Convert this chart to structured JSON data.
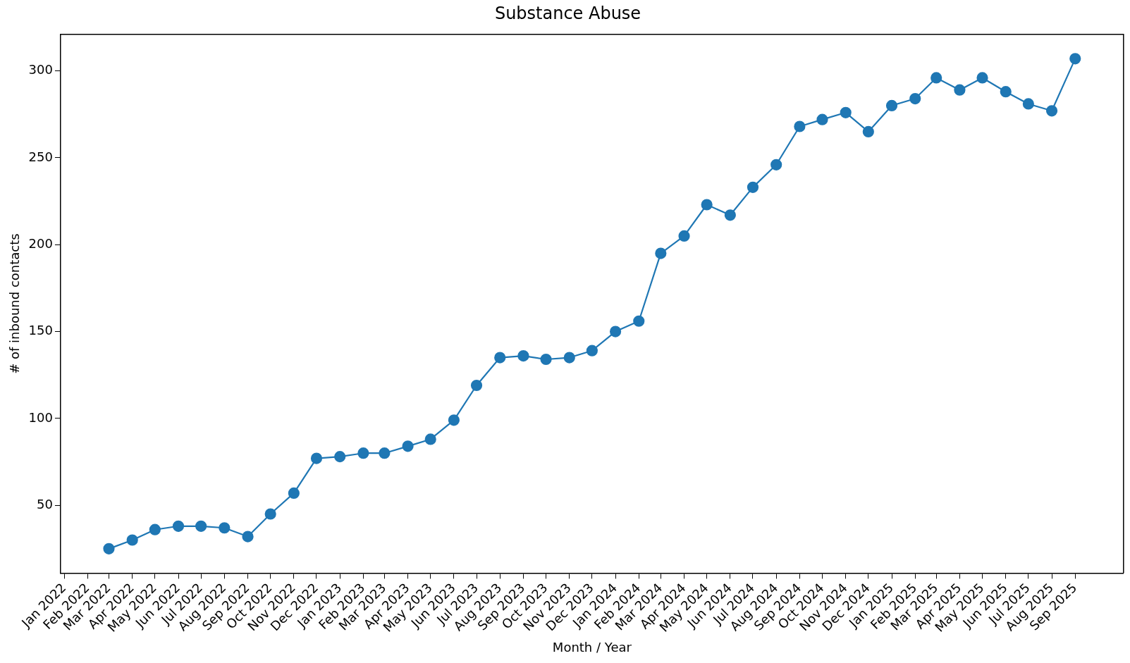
{
  "chart_data": {
    "type": "line",
    "title": "Substance Abuse",
    "xlabel": "Month / Year",
    "ylabel": "# of inbound contacts",
    "x": [
      "2022-03",
      "2022-04",
      "2022-05",
      "2022-06",
      "2022-07",
      "2022-08",
      "2022-09",
      "2022-10",
      "2022-11",
      "2022-12",
      "2023-01",
      "2023-02",
      "2023-03",
      "2023-04",
      "2023-05",
      "2023-06",
      "2023-07",
      "2023-08",
      "2023-09",
      "2023-10",
      "2023-11",
      "2023-12",
      "2024-01",
      "2024-02",
      "2024-03",
      "2024-04",
      "2024-05",
      "2024-06",
      "2024-07",
      "2024-08",
      "2024-09",
      "2024-10",
      "2024-11",
      "2024-12",
      "2025-01",
      "2025-02",
      "2025-03",
      "2025-04",
      "2025-05",
      "2025-06",
      "2025-07",
      "2025-08",
      "2025-09"
    ],
    "series": [
      {
        "color": "#1f77b4",
        "values": [
          25,
          30,
          36,
          38,
          38,
          37,
          32,
          45,
          57,
          77,
          78,
          80,
          80,
          84,
          88,
          99,
          119,
          135,
          136,
          134,
          135,
          139,
          150,
          156,
          195,
          205,
          223,
          217,
          233,
          246,
          268,
          272,
          276,
          265,
          280,
          284,
          296,
          289,
          296,
          288,
          281,
          277,
          307
        ]
      }
    ],
    "xlim": [
      "2021-12-27",
      "2025-11-04"
    ],
    "xticks": [
      {
        "value": "2022-01",
        "label": "Jan 2022"
      },
      {
        "value": "2022-02",
        "label": "Feb 2022"
      },
      {
        "value": "2022-03",
        "label": "Mar 2022"
      },
      {
        "value": "2022-04",
        "label": "Apr 2022"
      },
      {
        "value": "2022-05",
        "label": "May 2022"
      },
      {
        "value": "2022-06",
        "label": "Jun 2022"
      },
      {
        "value": "2022-07",
        "label": "Jul 2022"
      },
      {
        "value": "2022-08",
        "label": "Aug 2022"
      },
      {
        "value": "2022-09",
        "label": "Sep 2022"
      },
      {
        "value": "2022-10",
        "label": "Oct 2022"
      },
      {
        "value": "2022-11",
        "label": "Nov 2022"
      },
      {
        "value": "2022-12",
        "label": "Dec 2022"
      },
      {
        "value": "2023-01",
        "label": "Jan 2023"
      },
      {
        "value": "2023-02",
        "label": "Feb 2023"
      },
      {
        "value": "2023-03",
        "label": "Mar 2023"
      },
      {
        "value": "2023-04",
        "label": "Apr 2023"
      },
      {
        "value": "2023-05",
        "label": "May 2023"
      },
      {
        "value": "2023-06",
        "label": "Jun 2023"
      },
      {
        "value": "2023-07",
        "label": "Jul 2023"
      },
      {
        "value": "2023-08",
        "label": "Aug 2023"
      },
      {
        "value": "2023-09",
        "label": "Sep 2023"
      },
      {
        "value": "2023-10",
        "label": "Oct 2023"
      },
      {
        "value": "2023-11",
        "label": "Nov 2023"
      },
      {
        "value": "2023-12",
        "label": "Dec 2023"
      },
      {
        "value": "2024-01",
        "label": "Jan 2024"
      },
      {
        "value": "2024-02",
        "label": "Feb 2024"
      },
      {
        "value": "2024-03",
        "label": "Mar 2024"
      },
      {
        "value": "2024-04",
        "label": "Apr 2024"
      },
      {
        "value": "2024-05",
        "label": "May 2024"
      },
      {
        "value": "2024-06",
        "label": "Jun 2024"
      },
      {
        "value": "2024-07",
        "label": "Jul 2024"
      },
      {
        "value": "2024-08",
        "label": "Aug 2024"
      },
      {
        "value": "2024-09",
        "label": "Sep 2024"
      },
      {
        "value": "2024-10",
        "label": "Oct 2024"
      },
      {
        "value": "2024-11",
        "label": "Nov 2024"
      },
      {
        "value": "2024-12",
        "label": "Dec 2024"
      },
      {
        "value": "2025-01",
        "label": "Jan 2025"
      },
      {
        "value": "2025-02",
        "label": "Feb 2025"
      },
      {
        "value": "2025-03",
        "label": "Mar 2025"
      },
      {
        "value": "2025-04",
        "label": "Apr 2025"
      },
      {
        "value": "2025-05",
        "label": "May 2025"
      },
      {
        "value": "2025-06",
        "label": "Jun 2025"
      },
      {
        "value": "2025-07",
        "label": "Jul 2025"
      },
      {
        "value": "2025-08",
        "label": "Aug 2025"
      },
      {
        "value": "2025-09",
        "label": "Sep 2025"
      }
    ],
    "ylim": [
      11,
      321
    ],
    "yticks": [
      50,
      100,
      150,
      200,
      250,
      300
    ],
    "grid": false,
    "legend": false,
    "marker": "circle",
    "line_style": "solid"
  }
}
